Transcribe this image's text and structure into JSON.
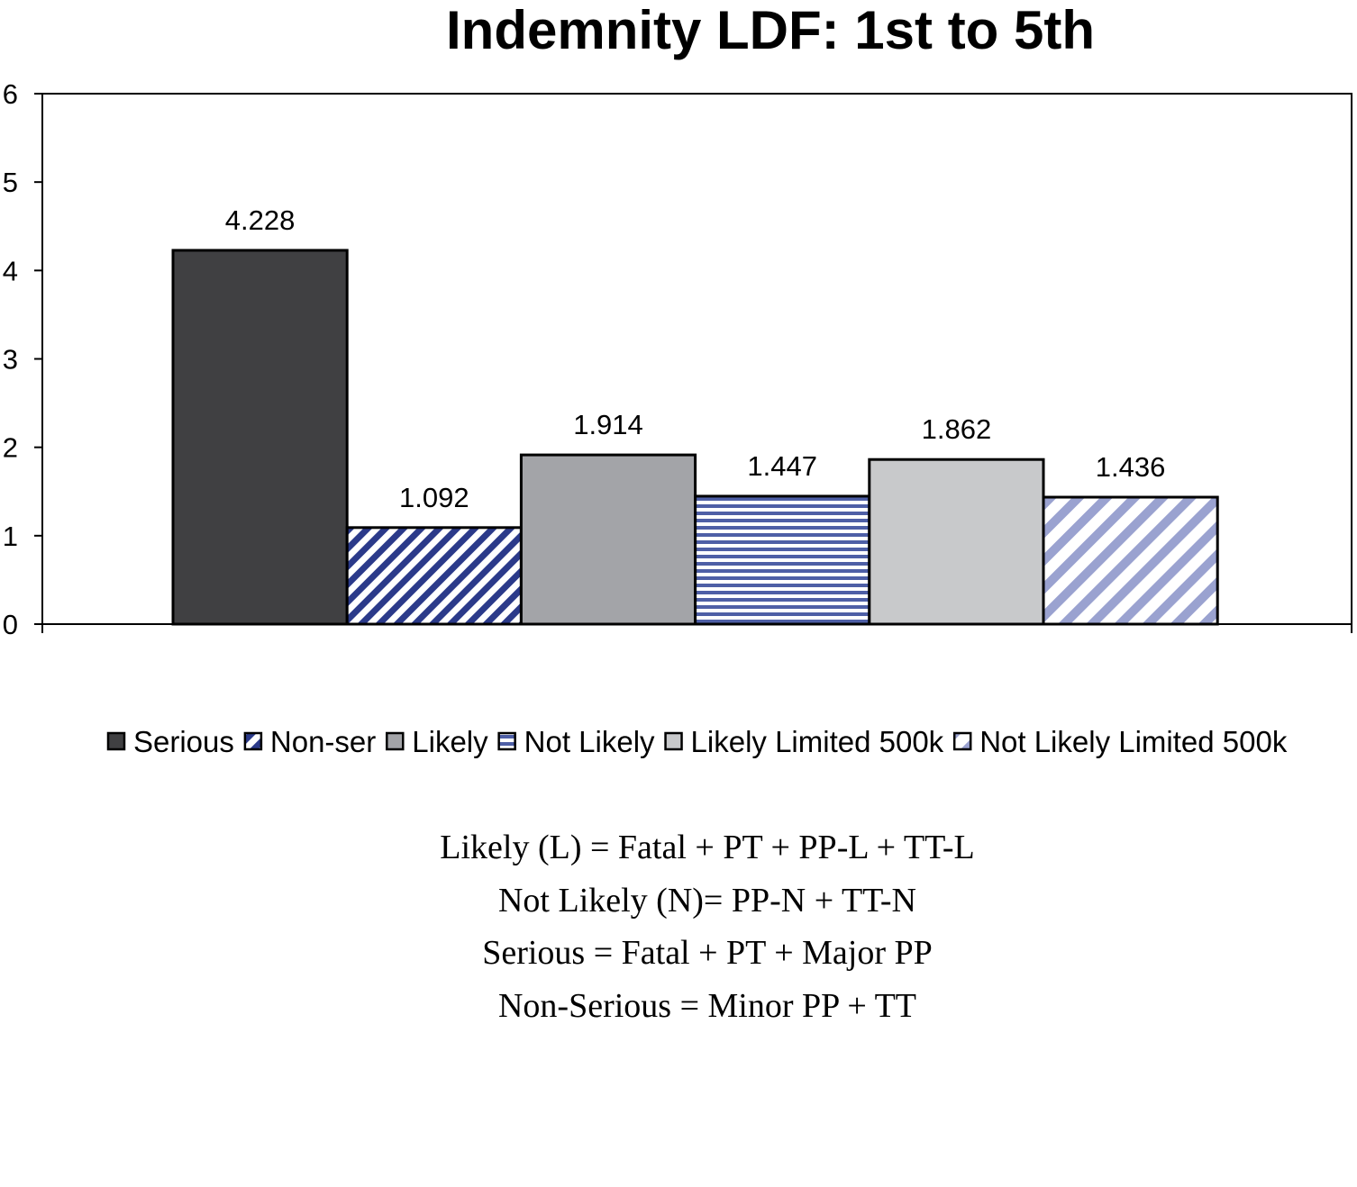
{
  "chart_data": {
    "type": "bar",
    "title": "Indemnity LDF: 1st to 5th",
    "xlabel": "",
    "ylabel": "",
    "ylim": [
      0,
      6
    ],
    "yticks": [
      "0",
      "1",
      "2",
      "3",
      "4",
      "5",
      "6"
    ],
    "grid": false,
    "legend_position": "bottom",
    "series": [
      {
        "name": "Serious",
        "values": [
          4.228
        ],
        "label": "4.228",
        "color": "#404042",
        "pattern": "solid"
      },
      {
        "name": "Non-ser",
        "values": [
          1.092
        ],
        "label": "1.092",
        "color": "#2b3a8a",
        "pattern": "diagonal"
      },
      {
        "name": "Likely",
        "values": [
          1.914
        ],
        "label": "1.914",
        "color": "#a3a4a8",
        "pattern": "solid"
      },
      {
        "name": "Not Likely",
        "values": [
          1.447
        ],
        "label": "1.447",
        "color": "#4e5fa6",
        "pattern": "horizontal"
      },
      {
        "name": "Likely Limited 500k",
        "values": [
          1.862
        ],
        "label": "1.862",
        "color": "#c8c9cb",
        "pattern": "solid"
      },
      {
        "name": "Not Likely Limited 500k",
        "values": [
          1.436
        ],
        "label": "1.436",
        "color": "#9aa2d0",
        "pattern": "wide-diagonal"
      }
    ]
  },
  "notes": [
    "Likely (L) = Fatal + PT + PP-L + TT-L",
    "Not Likely (N)= PP-N + TT-N",
    "Serious = Fatal + PT + Major PP",
    "Non-Serious = Minor PP + TT"
  ]
}
